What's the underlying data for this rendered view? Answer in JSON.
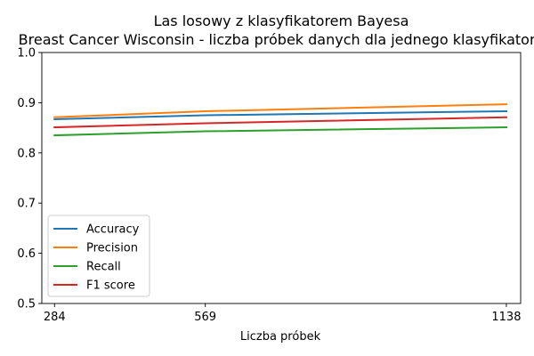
{
  "chart_data": {
    "type": "line",
    "title": "Las losowy z klasyfikatorem Bayesa",
    "subtitle": "Breast Cancer Wisconsin - liczba próbek danych dla jednego klasyfikatora",
    "xlabel": "Liczba próbek",
    "ylabel": "",
    "x": [
      284,
      569,
      1138
    ],
    "xticks": [
      "284",
      "569",
      "1138"
    ],
    "yticks": [
      "0.5",
      "0.6",
      "0.7",
      "0.8",
      "0.9",
      "1.0"
    ],
    "xlim": [
      260,
      1165
    ],
    "ylim": [
      0.5,
      1.0
    ],
    "grid": false,
    "legend_position": "lower-left",
    "series": [
      {
        "name": "Accuracy",
        "color": "#1f77b4",
        "values": [
          0.867,
          0.875,
          0.883
        ]
      },
      {
        "name": "Precision",
        "color": "#ff7f0e",
        "values": [
          0.871,
          0.883,
          0.897
        ]
      },
      {
        "name": "Recall",
        "color": "#2ca02c",
        "values": [
          0.835,
          0.843,
          0.851
        ]
      },
      {
        "name": "F1 score",
        "color": "#d62728",
        "values": [
          0.851,
          0.859,
          0.871
        ]
      }
    ]
  }
}
